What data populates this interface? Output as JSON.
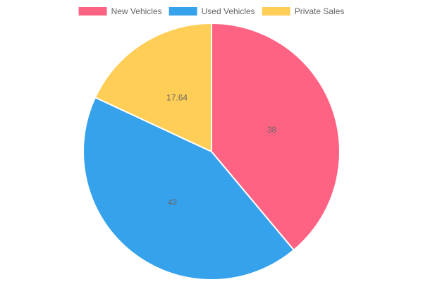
{
  "chart_data": {
    "type": "pie",
    "title": "",
    "categories": [
      "New Vehicles",
      "Used Vehicles",
      "Private Sales"
    ],
    "values": [
      38,
      42,
      17.64
    ],
    "value_labels": [
      "38",
      "42",
      "17.64"
    ],
    "colors": [
      "#ff6384",
      "#36a2eb",
      "#ffce56"
    ],
    "legend_position": "top",
    "grid": false
  }
}
